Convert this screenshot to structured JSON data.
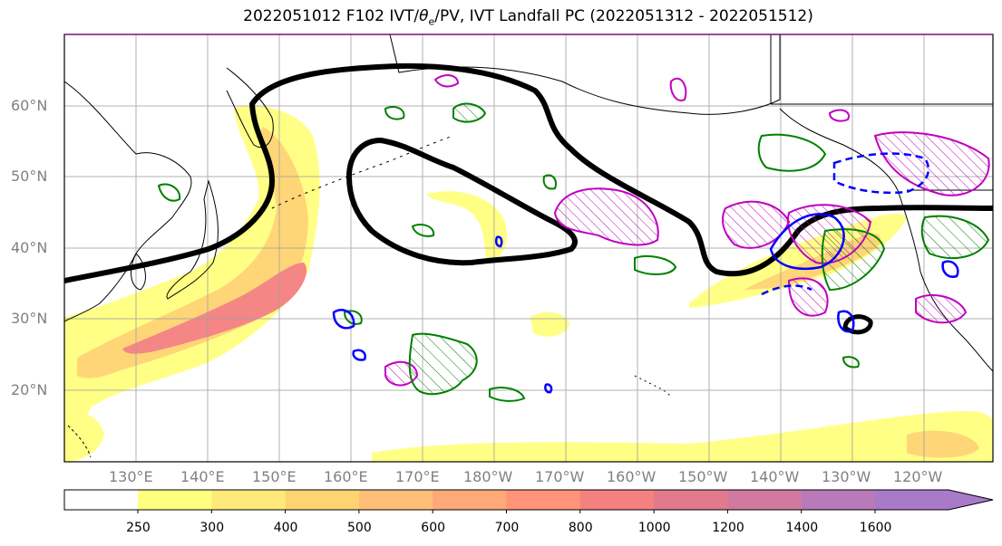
{
  "title": "2022051012 F102 IVT/θe/PV, IVT Landfall PC (2022051312 - 2022051512)",
  "title_parts": {
    "prefix": "2022051012 F102 IVT/",
    "theta": "θ",
    "theta_sub": "e",
    "suffix": "/PV, IVT Landfall PC (2022051312 - 2022051512)"
  },
  "lat_labels": [
    "60°N",
    "50°N",
    "40°N",
    "30°N",
    "20°N"
  ],
  "lon_labels": [
    "130°E",
    "140°E",
    "150°E",
    "160°E",
    "170°E",
    "180°W",
    "170°W",
    "160°W",
    "150°W",
    "140°W",
    "130°W",
    "120°W"
  ],
  "colorbar": {
    "ticks": [
      "250",
      "300",
      "400",
      "500",
      "600",
      "700",
      "800",
      "1000",
      "1200",
      "1400",
      "1600"
    ],
    "colors": [
      "#ffff80",
      "#ffe97a",
      "#ffd470",
      "#ffbe78",
      "#ffa878",
      "#ff9478",
      "#f58080",
      "#e07a8c",
      "#d07aa0",
      "#b87ab8",
      "#a87ac8"
    ]
  },
  "colors": {
    "ivt_low": "#ffff80",
    "ivt_mid": "#ffd470",
    "ivt_high": "#f08080",
    "theta_e": "#008000",
    "pv": "#c000c0",
    "landfall_pc": "#000000",
    "blue_contour": "#0000ff",
    "grid": "#a0a0a0"
  }
}
